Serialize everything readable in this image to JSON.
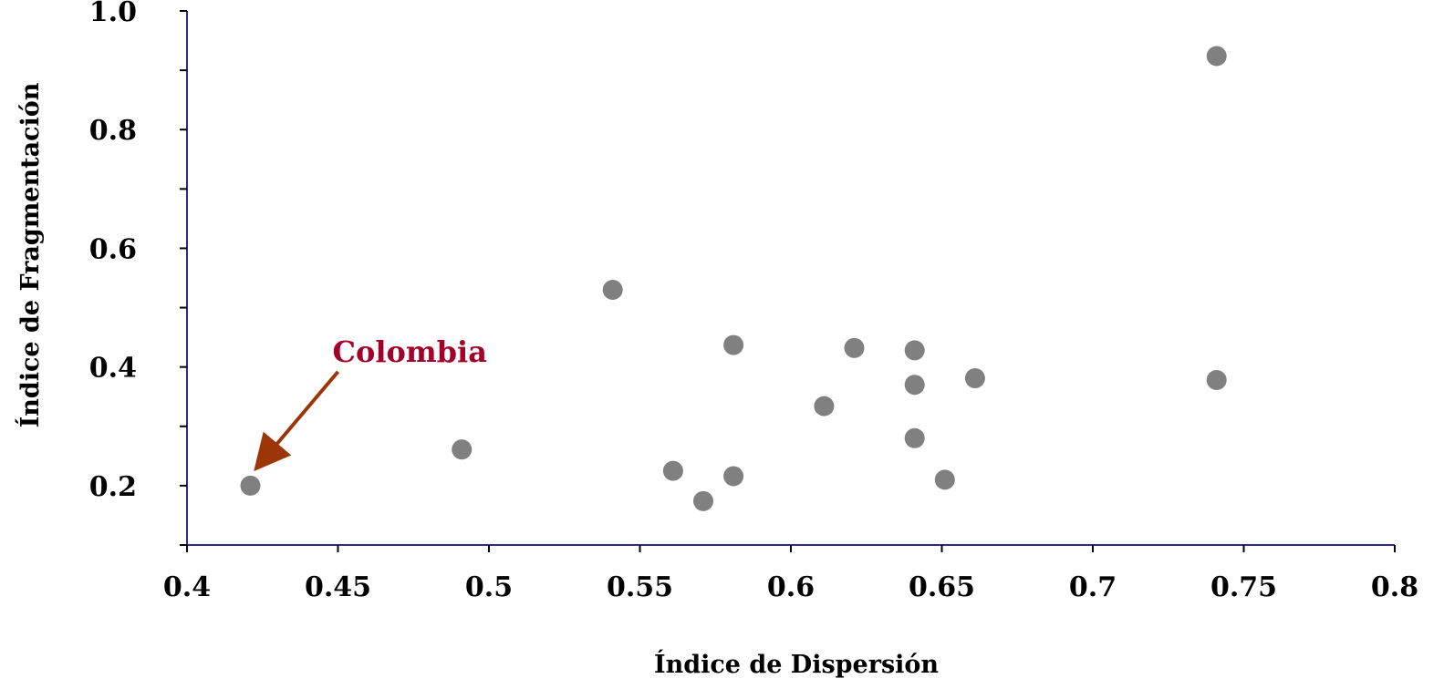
{
  "chart_data": {
    "type": "scatter",
    "title": "",
    "xlabel": "Índice de Dispersión",
    "ylabel": "Índice de Fragmentación",
    "xlim": [
      0.4,
      0.8
    ],
    "ylim": [
      0.1,
      1.0
    ],
    "x_ticks": [
      0.4,
      0.45,
      0.5,
      0.55,
      0.6,
      0.65,
      0.7,
      0.75,
      0.8
    ],
    "x_tick_labels": [
      "0.4",
      "0.45",
      "0.5",
      "0.55",
      "0.6",
      "0.65",
      "0.7",
      "0.75",
      "0.8"
    ],
    "y_ticks": [
      0.1,
      0.2,
      0.3,
      0.4,
      0.5,
      0.6,
      0.7,
      0.8,
      0.9,
      1.0
    ],
    "y_tick_labels": [
      "0.2",
      "0.4",
      "0.6",
      "0.8",
      "1.0"
    ],
    "y_labeled_ticks": [
      0.2,
      0.4,
      0.6,
      0.8,
      1.0
    ],
    "grid": false,
    "legend": "none",
    "series": [
      {
        "color": "#808080",
        "points": [
          {
            "x": 0.421,
            "y": 0.2
          },
          {
            "x": 0.491,
            "y": 0.261
          },
          {
            "x": 0.541,
            "y": 0.53
          },
          {
            "x": 0.561,
            "y": 0.225
          },
          {
            "x": 0.571,
            "y": 0.174
          },
          {
            "x": 0.581,
            "y": 0.216
          },
          {
            "x": 0.581,
            "y": 0.437
          },
          {
            "x": 0.611,
            "y": 0.334
          },
          {
            "x": 0.621,
            "y": 0.432
          },
          {
            "x": 0.641,
            "y": 0.428
          },
          {
            "x": 0.641,
            "y": 0.37
          },
          {
            "x": 0.641,
            "y": 0.28
          },
          {
            "x": 0.651,
            "y": 0.21
          },
          {
            "x": 0.661,
            "y": 0.381
          },
          {
            "x": 0.741,
            "y": 0.924
          },
          {
            "x": 0.741,
            "y": 0.378
          }
        ]
      }
    ],
    "annotations": [
      {
        "text": "Colombia",
        "color": "#a3002a",
        "arrow_color": "#9c3508",
        "target": {
          "x": 0.421,
          "y": 0.2
        }
      }
    ],
    "axis_color": "#2b2b8c"
  }
}
